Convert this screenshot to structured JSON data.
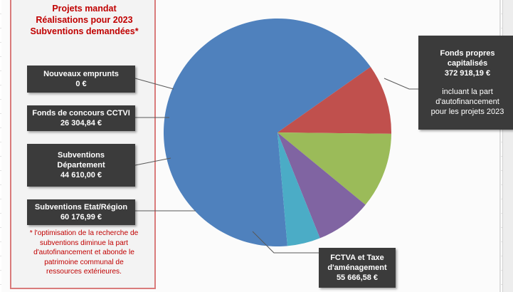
{
  "panel": {
    "title_lines": [
      "Projets mandat",
      "Réalisations pour 2023",
      "Subventions demandées*"
    ],
    "note_lines": [
      "* l'optimisation de la recherche de",
      "subventions diminue la part",
      "d'autofinancement et abonde le",
      "patrimoine communal de",
      "ressources extérieures."
    ]
  },
  "colors": {
    "panel_border": "#d97b7b",
    "title_red": "#c00000",
    "label_box": "#3b3b3b",
    "slice_blue": "#4f81bd",
    "slice_red": "#c0504d",
    "slice_green": "#9bbb59",
    "slice_purple": "#8064a2",
    "slice_cyan": "#4bacc6"
  },
  "chart_data": {
    "type": "pie",
    "slices": [
      {
        "name_lines": [
          "Fonds propres",
          "capitalisés"
        ],
        "value": 372918.19,
        "value_label": "372 918,19 €",
        "note_lines": [
          "incluant la part",
          "d'autofinancement",
          "pour les projets 2023"
        ],
        "color": "#4f81bd"
      },
      {
        "name_lines": [
          "FCTVA et Taxe",
          "d'aménagement"
        ],
        "value": 55666.58,
        "value_label": "55 666,58 €",
        "color": "#c0504d"
      },
      {
        "name_lines": [
          "Subventions Etat/Région"
        ],
        "value": 60176.99,
        "value_label": "60 176,99 €",
        "color": "#9bbb59"
      },
      {
        "name_lines": [
          "Subventions",
          "Département"
        ],
        "value": 44610.0,
        "value_label": "44 610,00 €",
        "color": "#8064a2"
      },
      {
        "name_lines": [
          "Fonds de concours CCTVI"
        ],
        "value": 26304.84,
        "value_label": "26 304,84 €",
        "color": "#4bacc6"
      },
      {
        "name_lines": [
          "Nouveaux emprunts"
        ],
        "value": 0,
        "value_label": "0 €",
        "color": "#4f81bd"
      }
    ]
  }
}
